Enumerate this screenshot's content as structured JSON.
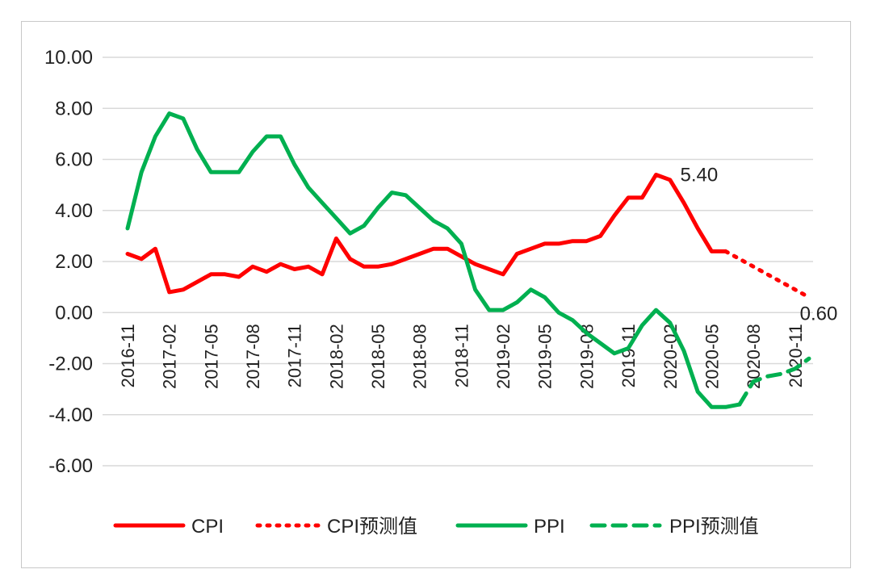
{
  "chart_data": {
    "type": "line",
    "title": "",
    "xlabel": "",
    "ylabel": "",
    "ylim": [
      -6,
      10
    ],
    "yticks": [
      "10.00",
      "8.00",
      "6.00",
      "4.00",
      "2.00",
      "0.00",
      "-2.00",
      "-4.00",
      "-6.00"
    ],
    "ytick_values": [
      10,
      8,
      6,
      4,
      2,
      0,
      -2,
      -4,
      -6
    ],
    "x": [
      "2016-11",
      "2016-12",
      "2017-01",
      "2017-02",
      "2017-03",
      "2017-04",
      "2017-05",
      "2017-06",
      "2017-07",
      "2017-08",
      "2017-09",
      "2017-10",
      "2017-11",
      "2017-12",
      "2018-01",
      "2018-02",
      "2018-03",
      "2018-04",
      "2018-05",
      "2018-06",
      "2018-07",
      "2018-08",
      "2018-09",
      "2018-10",
      "2018-11",
      "2018-12",
      "2019-01",
      "2019-02",
      "2019-03",
      "2019-04",
      "2019-05",
      "2019-06",
      "2019-07",
      "2019-08",
      "2019-09",
      "2019-10",
      "2019-11",
      "2019-12",
      "2020-01",
      "2020-02",
      "2020-03",
      "2020-04",
      "2020-05",
      "2020-06",
      "2020-07",
      "2020-08",
      "2020-09",
      "2020-10",
      "2020-11",
      "2020-12"
    ],
    "xtick_labels": [
      "2016-11",
      "2017-02",
      "2017-05",
      "2017-08",
      "2017-11",
      "2018-02",
      "2018-05",
      "2018-08",
      "2018-11",
      "2019-02",
      "2019-05",
      "2019-08",
      "2019-11",
      "2020-02",
      "2020-05",
      "2020-08",
      "2020-11"
    ],
    "series": [
      {
        "name": "CPI",
        "color": "#ff0000",
        "style": "solid",
        "values": [
          2.3,
          2.1,
          2.5,
          0.8,
          0.9,
          1.2,
          1.5,
          1.5,
          1.4,
          1.8,
          1.6,
          1.9,
          1.7,
          1.8,
          1.5,
          2.9,
          2.1,
          1.8,
          1.8,
          1.9,
          2.1,
          2.3,
          2.5,
          2.5,
          2.2,
          1.9,
          1.7,
          1.5,
          2.3,
          2.5,
          2.7,
          2.7,
          2.8,
          2.8,
          3.0,
          3.8,
          4.5,
          4.5,
          5.4,
          5.2,
          4.3,
          3.3,
          2.4,
          2.4,
          null,
          null,
          null,
          null,
          null,
          null
        ]
      },
      {
        "name": "CPI预测值",
        "color": "#ff0000",
        "style": "dotted",
        "values": [
          null,
          null,
          null,
          null,
          null,
          null,
          null,
          null,
          null,
          null,
          null,
          null,
          null,
          null,
          null,
          null,
          null,
          null,
          null,
          null,
          null,
          null,
          null,
          null,
          null,
          null,
          null,
          null,
          null,
          null,
          null,
          null,
          null,
          null,
          null,
          null,
          null,
          null,
          null,
          null,
          null,
          null,
          null,
          2.4,
          2.1,
          1.8,
          1.5,
          1.2,
          0.9,
          0.6
        ]
      },
      {
        "name": "PPI",
        "color": "#00b050",
        "style": "solid",
        "values": [
          3.3,
          5.5,
          6.9,
          7.8,
          7.6,
          6.4,
          5.5,
          5.5,
          5.5,
          6.3,
          6.9,
          6.9,
          5.8,
          4.9,
          4.3,
          3.7,
          3.1,
          3.4,
          4.1,
          4.7,
          4.6,
          4.1,
          3.6,
          3.3,
          2.7,
          0.9,
          0.1,
          0.1,
          0.4,
          0.9,
          0.6,
          0.0,
          -0.3,
          -0.8,
          -1.2,
          -1.6,
          -1.4,
          -0.5,
          0.1,
          -0.4,
          -1.5,
          -3.1,
          -3.7,
          -3.7,
          -3.6,
          null,
          null,
          null,
          null,
          null
        ]
      },
      {
        "name": "PPI预测值",
        "color": "#00b050",
        "style": "dashed",
        "values": [
          null,
          null,
          null,
          null,
          null,
          null,
          null,
          null,
          null,
          null,
          null,
          null,
          null,
          null,
          null,
          null,
          null,
          null,
          null,
          null,
          null,
          null,
          null,
          null,
          null,
          null,
          null,
          null,
          null,
          null,
          null,
          null,
          null,
          null,
          null,
          null,
          null,
          null,
          null,
          null,
          null,
          null,
          null,
          null,
          -3.6,
          -2.7,
          -2.5,
          -2.4,
          -2.2,
          -1.8
        ]
      }
    ],
    "annotations": [
      {
        "text": "5.40",
        "series": "CPI",
        "index": 38
      },
      {
        "text": "0.60",
        "series": "CPI预测值",
        "index": 49
      }
    ],
    "legend": {
      "position": "bottom",
      "entries": [
        "CPI",
        "CPI预测值",
        "PPI",
        "PPI预测值"
      ]
    },
    "grid": true
  }
}
